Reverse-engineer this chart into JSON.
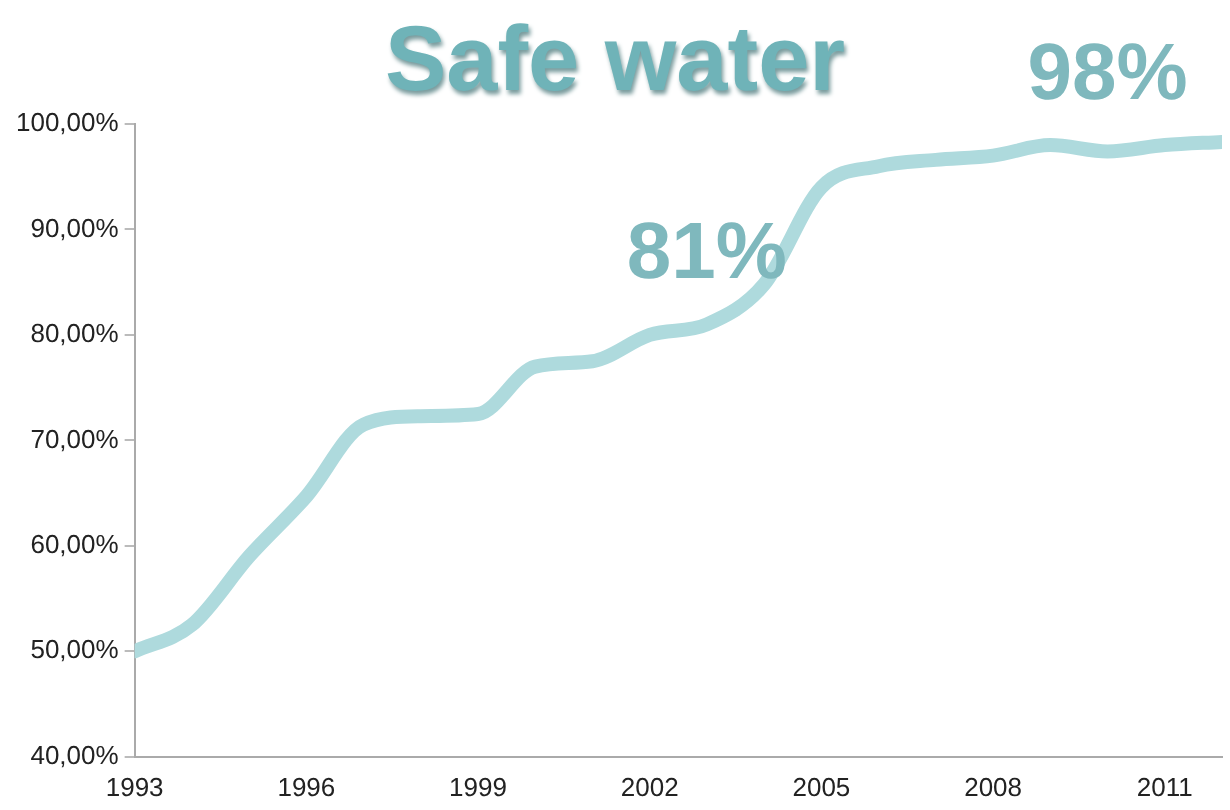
{
  "chart_data": {
    "type": "line",
    "title": "Safe water",
    "x": [
      1993,
      1994,
      1995,
      1996,
      1997,
      1998,
      1999,
      2000,
      2001,
      2002,
      2003,
      2004,
      2005,
      2006,
      2007,
      2008,
      2009,
      2010,
      2011,
      2012
    ],
    "series": [
      {
        "color": "#aedadd",
        "values": [
          50,
          52.5,
          59,
          64.7,
          71.5,
          72.3,
          72.5,
          77,
          77.5,
          80,
          81,
          84.8,
          94,
          96,
          96.6,
          97,
          98,
          97.4,
          98,
          98.3
        ]
      }
    ],
    "xlim": [
      1993,
      2012
    ],
    "xticks": [
      1993,
      1996,
      1999,
      2002,
      2005,
      2008,
      2011
    ],
    "ylim": [
      40,
      100
    ],
    "yticks": [
      {
        "value": 40,
        "label": "40,00%"
      },
      {
        "value": 50,
        "label": "50,00%"
      },
      {
        "value": 60,
        "label": "60,00%"
      },
      {
        "value": 70,
        "label": "70,00%"
      },
      {
        "value": 80,
        "label": "80,00%"
      },
      {
        "value": 90,
        "label": "90,00%"
      },
      {
        "value": 100,
        "label": "100,00%"
      }
    ],
    "annotations": [
      {
        "text": "81%",
        "x": 2003,
        "y": 81
      },
      {
        "text": "98%",
        "x": 2010,
        "y": 98
      }
    ],
    "grid": false,
    "legend": false,
    "marker": "none",
    "line_style": "solid"
  }
}
